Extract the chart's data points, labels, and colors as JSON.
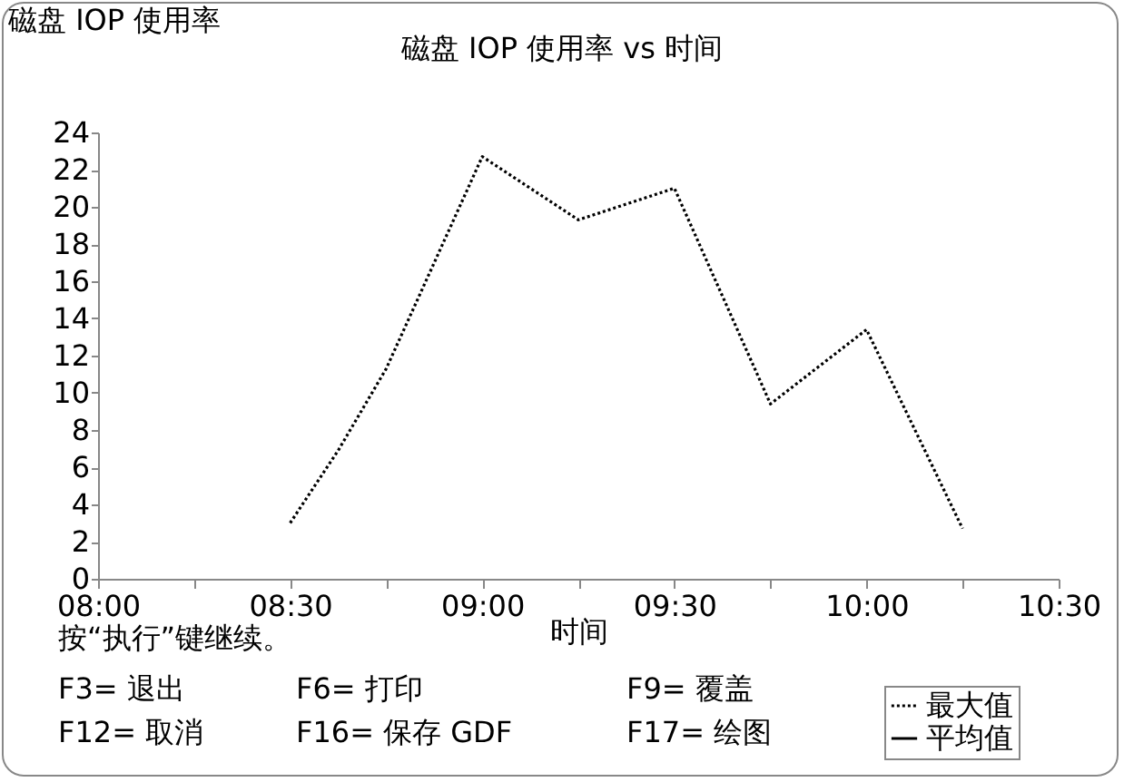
{
  "chart_data": {
    "type": "line",
    "title": "磁盘 IOP 使用率 vs 时间",
    "xlabel": "时间",
    "ylabel": "磁盘 IOP 使用率",
    "x": [
      8.5,
      8.625,
      8.75,
      9,
      9.25,
      9.5,
      9.75,
      10,
      10.25
    ],
    "series": [
      {
        "name": "最大值",
        "color": "#000000",
        "line_style": "dotted",
        "values": [
          3.0,
          6.9,
          11.3,
          22.7,
          19.3,
          21.0,
          9.4,
          13.4,
          2.7
        ]
      },
      {
        "name": "平均值",
        "color": "#000000",
        "line_style": "solid",
        "values": [
          null,
          null,
          null,
          null,
          null,
          null,
          null,
          null,
          null
        ]
      }
    ],
    "xlim": [
      8,
      10.5
    ],
    "xticks": [
      {
        "value": 8,
        "label": "08:00"
      },
      {
        "value": 8.25,
        "label": null
      },
      {
        "value": 8.5,
        "label": "08:30"
      },
      {
        "value": 8.75,
        "label": null
      },
      {
        "value": 9,
        "label": "09:00"
      },
      {
        "value": 9.25,
        "label": null
      },
      {
        "value": 9.5,
        "label": "09:30"
      },
      {
        "value": 9.75,
        "label": null
      },
      {
        "value": 10,
        "label": "10:00"
      },
      {
        "value": 10.25,
        "label": null
      },
      {
        "value": 10.5,
        "label": "10:30"
      }
    ],
    "ylim": [
      0,
      24
    ],
    "yticks": [
      0,
      2,
      4,
      6,
      8,
      10,
      12,
      14,
      16,
      18,
      20,
      22,
      24
    ],
    "grid": false,
    "legend": "bottom right",
    "annotations": [
      "按“执行”键继续。",
      "F3= 退出",
      "F6= 打印",
      "F9= 覆盖",
      "F12= 取消",
      "F16= 保存 GDF",
      "F17= 绘图"
    ]
  }
}
